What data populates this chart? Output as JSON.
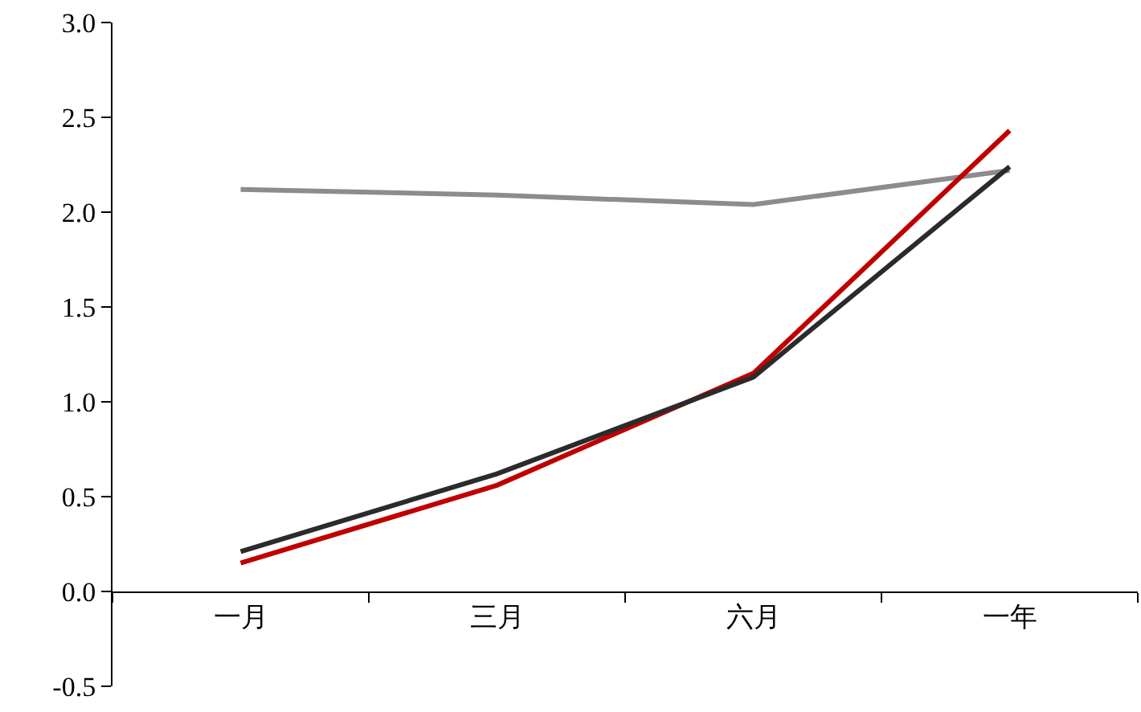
{
  "chart_data": {
    "type": "line",
    "categories": [
      "一月",
      "三月",
      "六月",
      "一年"
    ],
    "series": [
      {
        "color": "#8c8c8c",
        "values": [
          2.12,
          2.09,
          2.04,
          2.22
        ]
      },
      {
        "color": "#c00000",
        "values": [
          0.15,
          0.56,
          1.15,
          2.43
        ]
      },
      {
        "color": "#2b2b2b",
        "values": [
          0.21,
          0.62,
          1.13,
          2.24
        ]
      }
    ],
    "ylim": [
      -0.5,
      3.0
    ],
    "yticks": [
      {
        "value": -0.5,
        "label": "-0.5"
      },
      {
        "value": 0,
        "label": "0.0"
      },
      {
        "value": 0.5,
        "label": "0.5"
      },
      {
        "value": 1,
        "label": "1.0"
      },
      {
        "value": 1.5,
        "label": "1.5"
      },
      {
        "value": 2,
        "label": "2.0"
      },
      {
        "value": 2.5,
        "label": "2.5"
      },
      {
        "value": 3,
        "label": "3.0"
      }
    ]
  }
}
